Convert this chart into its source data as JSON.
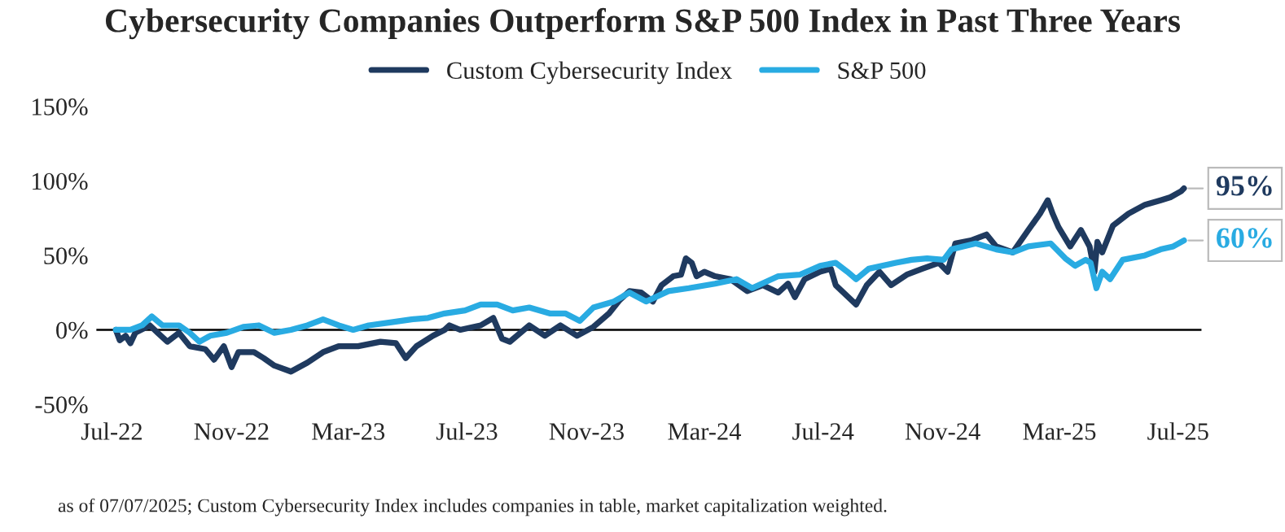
{
  "chart_data": {
    "type": "line",
    "title": "Cybersecurity Companies Outperform S&P 500 Index in Past Three Years",
    "series": [
      {
        "name": "Custom Cybersecurity Index",
        "color": "#1f3a5f",
        "x": [
          "2022-07-05",
          "2022-07-09",
          "2022-07-15",
          "2022-07-20",
          "2022-07-25",
          "2022-08-09",
          "2022-08-17",
          "2022-08-27",
          "2022-09-08",
          "2022-09-19",
          "2022-10-05",
          "2022-10-14",
          "2022-10-24",
          "2022-11-01",
          "2022-11-08",
          "2022-11-24",
          "2022-12-04",
          "2022-12-15",
          "2023-01-01",
          "2023-01-18",
          "2023-02-03",
          "2023-02-19",
          "2023-03-11",
          "2023-04-03",
          "2023-04-19",
          "2023-04-29",
          "2023-05-10",
          "2023-05-27",
          "2023-06-08",
          "2023-06-13",
          "2023-06-24",
          "2023-07-15",
          "2023-07-28",
          "2023-08-06",
          "2023-08-14",
          "2023-09-03",
          "2023-09-19",
          "2023-10-05",
          "2023-10-22",
          "2023-11-08",
          "2023-11-24",
          "2023-12-05",
          "2023-12-15",
          "2023-12-27",
          "2024-01-08",
          "2024-01-17",
          "2024-01-29",
          "2024-02-06",
          "2024-02-11",
          "2024-02-17",
          "2024-02-22",
          "2024-03-01",
          "2024-03-12",
          "2024-03-28",
          "2024-04-14",
          "2024-04-30",
          "2024-05-16",
          "2024-05-26",
          "2024-06-02",
          "2024-06-12",
          "2024-06-28",
          "2024-07-09",
          "2024-07-14",
          "2024-08-04",
          "2024-08-15",
          "2024-08-28",
          "2024-09-09",
          "2024-09-25",
          "2024-10-11",
          "2024-10-28",
          "2024-11-06",
          "2024-11-14",
          "2024-11-30",
          "2024-12-16",
          "2024-12-26",
          "2025-01-12",
          "2025-01-28",
          "2025-02-09",
          "2025-02-17",
          "2025-02-22",
          "2025-02-28",
          "2025-03-12",
          "2025-03-23",
          "2025-04-01",
          "2025-04-06",
          "2025-04-09",
          "2025-04-14",
          "2025-04-25",
          "2025-05-11",
          "2025-05-28",
          "2025-06-13",
          "2025-06-23",
          "2025-07-04",
          "2025-07-07"
        ],
        "values": [
          0,
          -7,
          -4,
          -9,
          -2,
          3,
          -2,
          -8,
          -2,
          -11,
          -13,
          -20,
          -11,
          -25,
          -15,
          -15,
          -19,
          -24,
          -28,
          -22,
          -15,
          -11,
          -11,
          -8,
          -9,
          -19,
          -11,
          -4,
          0,
          3,
          0,
          3,
          8,
          -6,
          -8,
          3,
          -4,
          3,
          -4,
          2,
          11,
          20,
          26,
          25,
          19,
          30,
          36,
          37,
          48,
          45,
          36,
          39,
          36,
          34,
          26,
          30,
          25,
          31,
          22,
          34,
          39,
          41,
          30,
          17,
          30,
          39,
          30,
          37,
          41,
          45,
          39,
          58,
          60,
          64,
          56,
          52,
          67,
          78,
          87,
          78,
          69,
          56,
          67,
          56,
          39,
          59,
          52,
          70,
          78,
          84,
          87,
          89,
          93,
          95
        ]
      },
      {
        "name": "S&P 500",
        "color": "#29abe2",
        "x": [
          "2022-07-05",
          "2022-07-20",
          "2022-08-01",
          "2022-08-11",
          "2022-08-22",
          "2022-09-08",
          "2022-09-19",
          "2022-09-29",
          "2022-10-10",
          "2022-10-27",
          "2022-11-13",
          "2022-11-29",
          "2022-12-15",
          "2023-01-01",
          "2023-01-18",
          "2023-02-03",
          "2023-02-19",
          "2023-03-06",
          "2023-03-22",
          "2023-04-13",
          "2023-05-05",
          "2023-05-22",
          "2023-06-08",
          "2023-06-29",
          "2023-07-15",
          "2023-08-01",
          "2023-08-17",
          "2023-09-03",
          "2023-09-24",
          "2023-10-10",
          "2023-10-25",
          "2023-11-08",
          "2023-11-29",
          "2023-12-15",
          "2024-01-01",
          "2024-01-24",
          "2024-02-14",
          "2024-03-12",
          "2024-04-03",
          "2024-04-19",
          "2024-05-16",
          "2024-06-07",
          "2024-06-28",
          "2024-07-14",
          "2024-07-26",
          "2024-08-04",
          "2024-08-17",
          "2024-09-14",
          "2024-09-30",
          "2024-10-16",
          "2024-11-02",
          "2024-11-10",
          "2024-12-05",
          "2024-12-26",
          "2025-01-12",
          "2025-01-28",
          "2025-02-20",
          "2025-03-07",
          "2025-03-17",
          "2025-03-28",
          "2025-04-02",
          "2025-04-08",
          "2025-04-14",
          "2025-04-22",
          "2025-05-05",
          "2025-05-28",
          "2025-06-13",
          "2025-06-26",
          "2025-07-07"
        ],
        "values": [
          0,
          0,
          3,
          9,
          3,
          3,
          -2,
          -8,
          -4,
          -2,
          2,
          3,
          -2,
          0,
          3,
          7,
          3,
          0,
          3,
          5,
          7,
          8,
          11,
          13,
          17,
          17,
          13,
          15,
          11,
          11,
          6,
          15,
          19,
          25,
          19,
          26,
          28,
          31,
          34,
          28,
          36,
          37,
          43,
          45,
          39,
          34,
          41,
          45,
          47,
          48,
          47,
          54,
          58,
          54,
          52,
          56,
          58,
          48,
          43,
          47,
          45,
          28,
          39,
          34,
          47,
          50,
          54,
          56,
          60
        ]
      }
    ],
    "xlim": [
      "2022-06-15",
      "2025-07-25"
    ],
    "xticks": [
      {
        "value": "2022-07-01",
        "label": "Jul-22"
      },
      {
        "value": "2022-11-01",
        "label": "Nov-22"
      },
      {
        "value": "2023-03-01",
        "label": "Mar-23"
      },
      {
        "value": "2023-07-01",
        "label": "Jul-23"
      },
      {
        "value": "2023-11-01",
        "label": "Nov-23"
      },
      {
        "value": "2024-03-01",
        "label": "Mar-24"
      },
      {
        "value": "2024-07-01",
        "label": "Jul-24"
      },
      {
        "value": "2024-11-01",
        "label": "Nov-24"
      },
      {
        "value": "2025-03-01",
        "label": "Mar-25"
      },
      {
        "value": "2025-07-01",
        "label": "Jul-25"
      }
    ],
    "ylim": [
      -50,
      150
    ],
    "yticks": [
      {
        "value": -50,
        "label": "-50%"
      },
      {
        "value": 0,
        "label": "0%"
      },
      {
        "value": 50,
        "label": "50%"
      },
      {
        "value": 100,
        "label": "100%"
      },
      {
        "value": 150,
        "label": "150%"
      }
    ],
    "ref_lines": [
      {
        "axis": "y",
        "value": 0,
        "color": "#000000"
      }
    ],
    "annotations": [
      {
        "text": "95%",
        "x": "2025-07-07",
        "y": 95
      },
      {
        "text": "60%",
        "x": "2025-07-07",
        "y": 60
      },
      "as of 07/07/2025; Custom Cybersecurity Index includes companies in table, market capitalization weighted."
    ],
    "legend": "top",
    "grid": false,
    "marker": "none",
    "line_style": "solid"
  }
}
